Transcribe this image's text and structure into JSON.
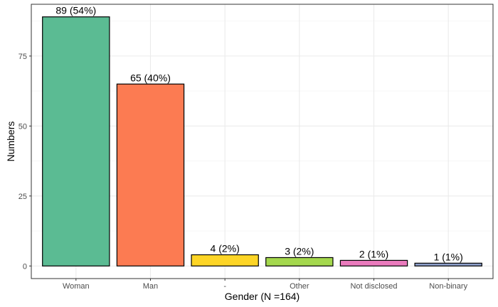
{
  "chart_data": {
    "type": "bar",
    "xlabel": "Gender (N =164)",
    "ylabel": "Numbers",
    "categories": [
      "Woman",
      "Man",
      "-",
      "Other",
      "Not disclosed",
      "Non-binary"
    ],
    "values": [
      89,
      65,
      4,
      3,
      2,
      1
    ],
    "data_labels": [
      "89 (54%)",
      "65 (40%)",
      "4 (2%)",
      "3 (2%)",
      "2 (1%)",
      "1 (1%)"
    ],
    "colors": [
      "#5bbb93",
      "#fc7b52",
      "#fdd526",
      "#a4d84d",
      "#ea7bbd",
      "#8c9ec9"
    ],
    "ylim": [
      -4.5,
      93.5
    ],
    "yticks": [
      0,
      25,
      50,
      75
    ],
    "grid": true,
    "legend": "none"
  }
}
